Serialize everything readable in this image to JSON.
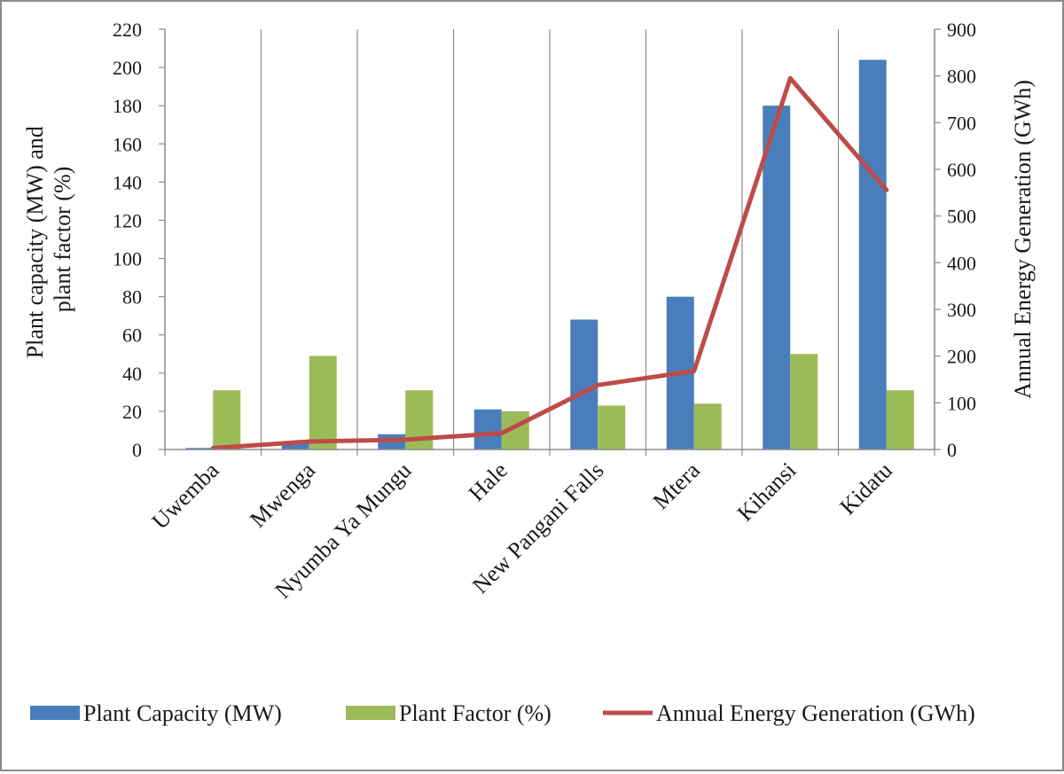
{
  "chart_data": {
    "type": "bar",
    "title": "",
    "categories": [
      "Uwemba",
      "Mwenga",
      "Nyumba Ya Mungu",
      "Hale",
      "New Pangani Falls",
      "Mtera",
      "Kihansi",
      "Kidatu"
    ],
    "series": [
      {
        "name": "Plant Capacity (MW)",
        "type": "bar",
        "axis": "left",
        "color": "#4a7ebb",
        "values": [
          0.8,
          4,
          8,
          21,
          68,
          80,
          180,
          204
        ]
      },
      {
        "name": "Plant Factor (%)",
        "type": "bar",
        "axis": "left",
        "color": "#9bbb59",
        "values": [
          31,
          49,
          31,
          20,
          23,
          24,
          50,
          31
        ]
      },
      {
        "name": "Annual Energy Generation (GWh)",
        "type": "line",
        "axis": "right",
        "color": "#be4b48",
        "values": [
          3,
          17,
          21,
          35,
          138,
          168,
          795,
          556
        ]
      }
    ],
    "ylabel": "Plant capacity (MW) and plant factor (%)",
    "ylabel_lines": [
      "Plant capacity (MW) and",
      "plant factor (%)"
    ],
    "y2label": "Annual Energy Generation (GWh)",
    "ylim": [
      0,
      220
    ],
    "y2lim": [
      0,
      900
    ],
    "yticks": [
      0,
      20,
      40,
      60,
      80,
      100,
      120,
      140,
      160,
      180,
      200,
      220
    ],
    "y2ticks": [
      0,
      100,
      200,
      300,
      400,
      500,
      600,
      700,
      800,
      900
    ],
    "grid": "vertical",
    "legend": "bottom"
  }
}
